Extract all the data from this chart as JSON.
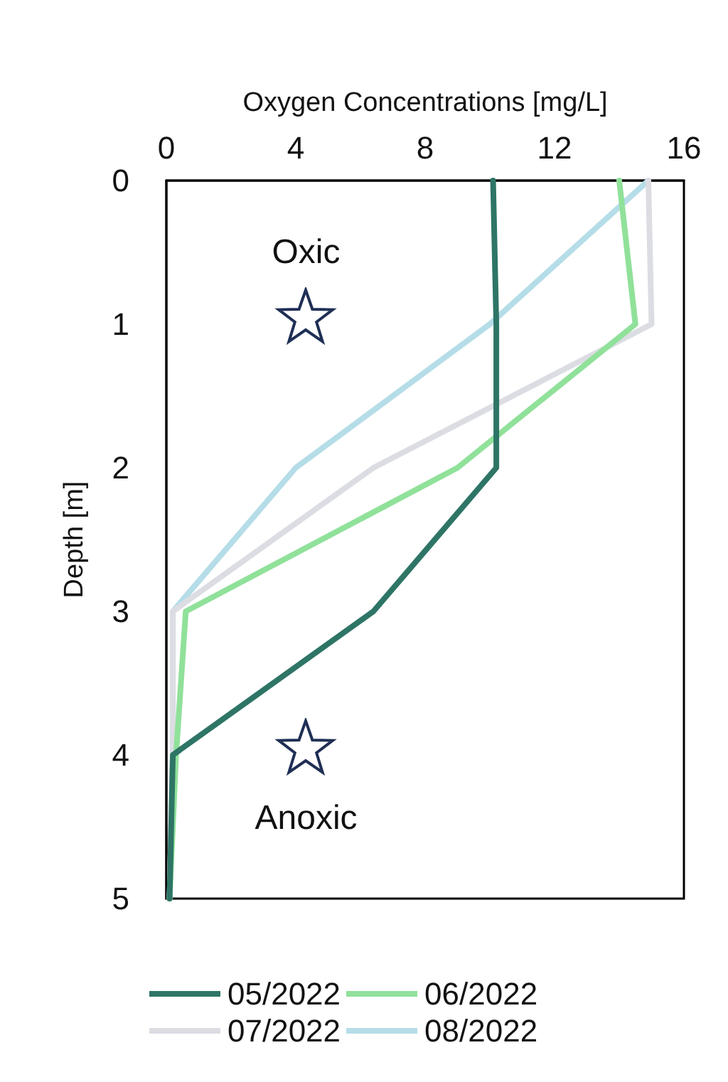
{
  "chart_data": {
    "type": "line",
    "xlabel": "Oxygen Concentrations [mg/L]",
    "ylabel": "Depth [m]",
    "xlim": [
      0,
      16
    ],
    "xticks": [
      0,
      4,
      8,
      12,
      16
    ],
    "ylim": [
      5,
      0
    ],
    "yticks": [
      0,
      1,
      2,
      3,
      4,
      5
    ],
    "series": [
      {
        "name": "05/2022",
        "color": "#2e7566",
        "x": [
          10.1,
          10.2,
          10.2,
          6.4,
          0.2,
          0.1
        ],
        "values": [
          0,
          1,
          2,
          3,
          4,
          5
        ]
      },
      {
        "name": "06/2022",
        "color": "#90e19a",
        "x": [
          14.0,
          14.5,
          9.0,
          0.6,
          0.3,
          0.1
        ],
        "values": [
          0,
          1,
          2,
          3,
          4,
          5
        ]
      },
      {
        "name": "07/2022",
        "color": "#dcdde3",
        "x": [
          14.9,
          15.0,
          6.4,
          0.2,
          0.2,
          0.1
        ],
        "values": [
          0,
          1,
          2,
          3,
          4,
          5
        ]
      },
      {
        "name": "08/2022",
        "color": "#b5dde8",
        "x": [
          14.9,
          10.0,
          4.0,
          0.2,
          0.2,
          0.1
        ],
        "values": [
          0,
          1,
          2,
          3,
          4,
          5
        ]
      }
    ],
    "annotations": [
      "Oxic",
      "Anoxic"
    ],
    "legend": "bottom",
    "grid": false,
    "marker": "none",
    "line_style": "solid"
  }
}
